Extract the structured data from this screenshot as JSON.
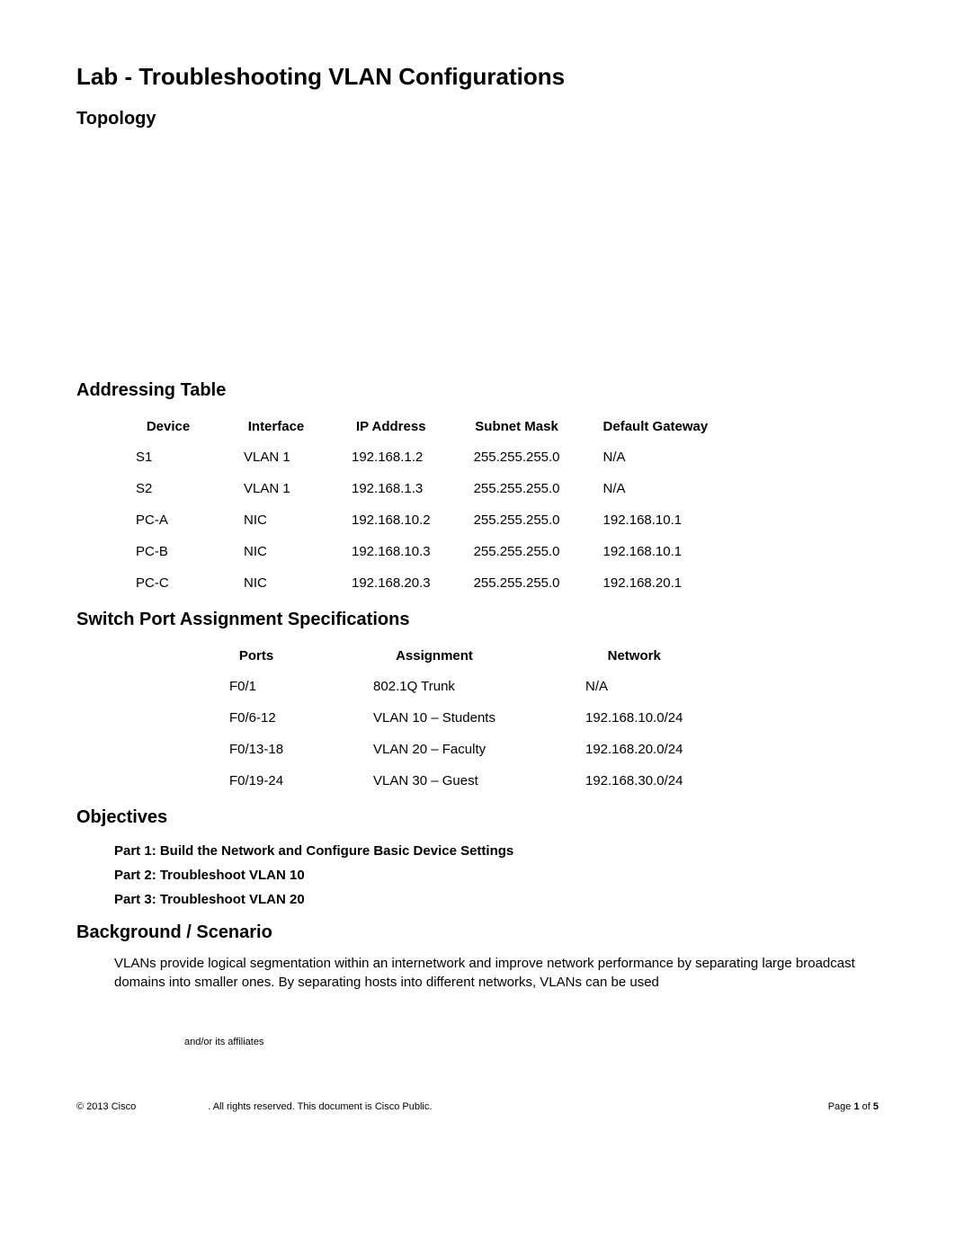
{
  "title": "Lab - Troubleshooting VLAN Configurations",
  "topology_heading": "Topology",
  "addressing": {
    "heading": "Addressing Table",
    "columns": [
      "Device",
      "Interface",
      "IP Address",
      "Subnet Mask",
      "Default Gateway"
    ],
    "rows": [
      [
        "S1",
        "VLAN 1",
        "192.168.1.2",
        "255.255.255.0",
        "N/A"
      ],
      [
        "S2",
        "VLAN 1",
        "192.168.1.3",
        "255.255.255.0",
        "N/A"
      ],
      [
        "PC-A",
        "NIC",
        "192.168.10.2",
        "255.255.255.0",
        "192.168.10.1"
      ],
      [
        "PC-B",
        "NIC",
        "192.168.10.3",
        "255.255.255.0",
        "192.168.10.1"
      ],
      [
        "PC-C",
        "NIC",
        "192.168.20.3",
        "255.255.255.0",
        "192.168.20.1"
      ]
    ]
  },
  "portspec": {
    "heading": "Switch Port Assignment Specifications",
    "columns": [
      "Ports",
      "Assignment",
      "Network"
    ],
    "rows": [
      [
        "F0/1",
        "802.1Q Trunk",
        "N/A"
      ],
      [
        "F0/6-12",
        "VLAN 10 – Students",
        "192.168.10.0/24"
      ],
      [
        "F0/13-18",
        "VLAN 20 – Faculty",
        "192.168.20.0/24"
      ],
      [
        "F0/19-24",
        "VLAN 30 – Guest",
        "192.168.30.0/24"
      ]
    ]
  },
  "objectives": {
    "heading": "Objectives",
    "items": [
      "Part 1: Build the Network and Configure Basic Device Settings",
      "Part 2: Troubleshoot VLAN 10",
      "Part 3: Troubleshoot VLAN 20"
    ]
  },
  "background": {
    "heading": "Background / Scenario",
    "text": "VLANs provide logical segmentation within an internetwork and improve network performance by separating large broadcast domains into smaller ones. By separating hosts into different networks, VLANs can be used"
  },
  "footer": {
    "affiliates": "and/or its affiliates",
    "left1": "© 2013 Cisco",
    "left2": ". All rights reserved. This document is Cisco Public.",
    "right_prefix": "Page ",
    "page_num": "1",
    "of_word": " of ",
    "total_pages": "5"
  }
}
